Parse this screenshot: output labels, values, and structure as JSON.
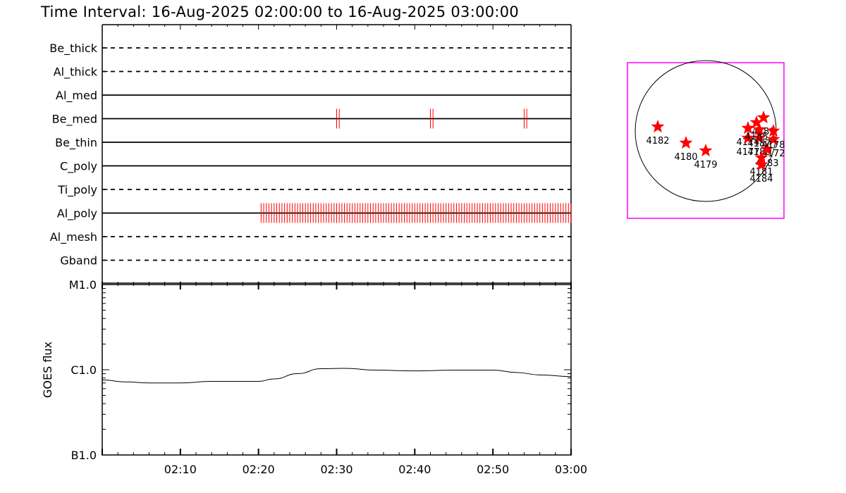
{
  "title": "Time Interval: 16-Aug-2025 02:00:00 to 16-Aug-2025 03:00:00",
  "colors": {
    "axis": "#000000",
    "event": "#ff0000",
    "star": "#ff0000",
    "box": "#ff00ff"
  },
  "chart_data": [
    {
      "type": "timeline",
      "time_range": [
        "02:00",
        "03:00"
      ],
      "rows": [
        {
          "name": "Be_thick",
          "style": "dashed",
          "events": []
        },
        {
          "name": "Al_thick",
          "style": "dashed",
          "events": []
        },
        {
          "name": "Al_med",
          "style": "solid",
          "events": []
        },
        {
          "name": "Be_med",
          "style": "solid",
          "events": [
            "02:30:00",
            "02:30:20",
            "02:42:00",
            "02:42:20",
            "02:54:00",
            "02:54:20"
          ]
        },
        {
          "name": "Be_thin",
          "style": "solid",
          "events": []
        },
        {
          "name": "C_poly",
          "style": "solid",
          "events": []
        },
        {
          "name": "Ti_poly",
          "style": "dashed",
          "events": []
        },
        {
          "name": "Al_poly",
          "style": "solid",
          "events_every_seconds": 20,
          "events_from": "02:20:20",
          "events_to": "03:00:00"
        },
        {
          "name": "Al_mesh",
          "style": "dashed",
          "events": []
        },
        {
          "name": "Gband",
          "style": "dashed",
          "events": []
        }
      ]
    },
    {
      "type": "line",
      "ylabel": "GOES flux",
      "yscale": "log",
      "y_tick_labels": [
        "M1.0",
        "C1.0",
        "B1.0"
      ],
      "ylim_wm2": [
        1e-07,
        1e-05
      ],
      "x_tick_labels": [
        "02:10",
        "02:20",
        "02:30",
        "02:40",
        "02:50",
        "03:00"
      ],
      "xlim": [
        "02:00",
        "03:00"
      ],
      "x_minutes": [
        0,
        3,
        6,
        10,
        14,
        20,
        22,
        25,
        28,
        31,
        35,
        40,
        45,
        50,
        53,
        56,
        60
      ],
      "y_wm2": [
        7.6e-07,
        7.2e-07,
        7e-07,
        7e-07,
        7.3e-07,
        7.3e-07,
        7.8e-07,
        9e-07,
        1.03e-06,
        1.04e-06,
        9.9e-07,
        9.7e-07,
        9.9e-07,
        9.9e-07,
        9.3e-07,
        8.7e-07,
        8.3e-07
      ]
    },
    {
      "type": "scatter",
      "description_free": true,
      "points": [
        {
          "label": "4182",
          "x": -0.68,
          "y": 0.06
        },
        {
          "label": "4180",
          "x": -0.28,
          "y": -0.17
        },
        {
          "label": "4179",
          "x": 0.0,
          "y": -0.28
        },
        {
          "label": "4174",
          "x": 0.6,
          "y": 0.04
        },
        {
          "label": "4177",
          "x": 0.6,
          "y": -0.1
        },
        {
          "label": "4186",
          "x": 0.76,
          "y": -0.1
        },
        {
          "label": "4185",
          "x": 0.72,
          "y": 0.12
        },
        {
          "label": "4189",
          "x": 0.82,
          "y": 0.19
        },
        {
          "label": "4172",
          "x": 0.96,
          "y": -0.12
        },
        {
          "label": "4183",
          "x": 0.87,
          "y": -0.26
        },
        {
          "label": "4181",
          "x": 0.79,
          "y": -0.38
        },
        {
          "label": "4184",
          "x": 0.79,
          "y": -0.48
        },
        {
          "label": "4178",
          "x": 0.96,
          "y": 0.0
        },
        {
          "label": "4187",
          "x": 0.76,
          "y": 0.02
        }
      ]
    }
  ]
}
